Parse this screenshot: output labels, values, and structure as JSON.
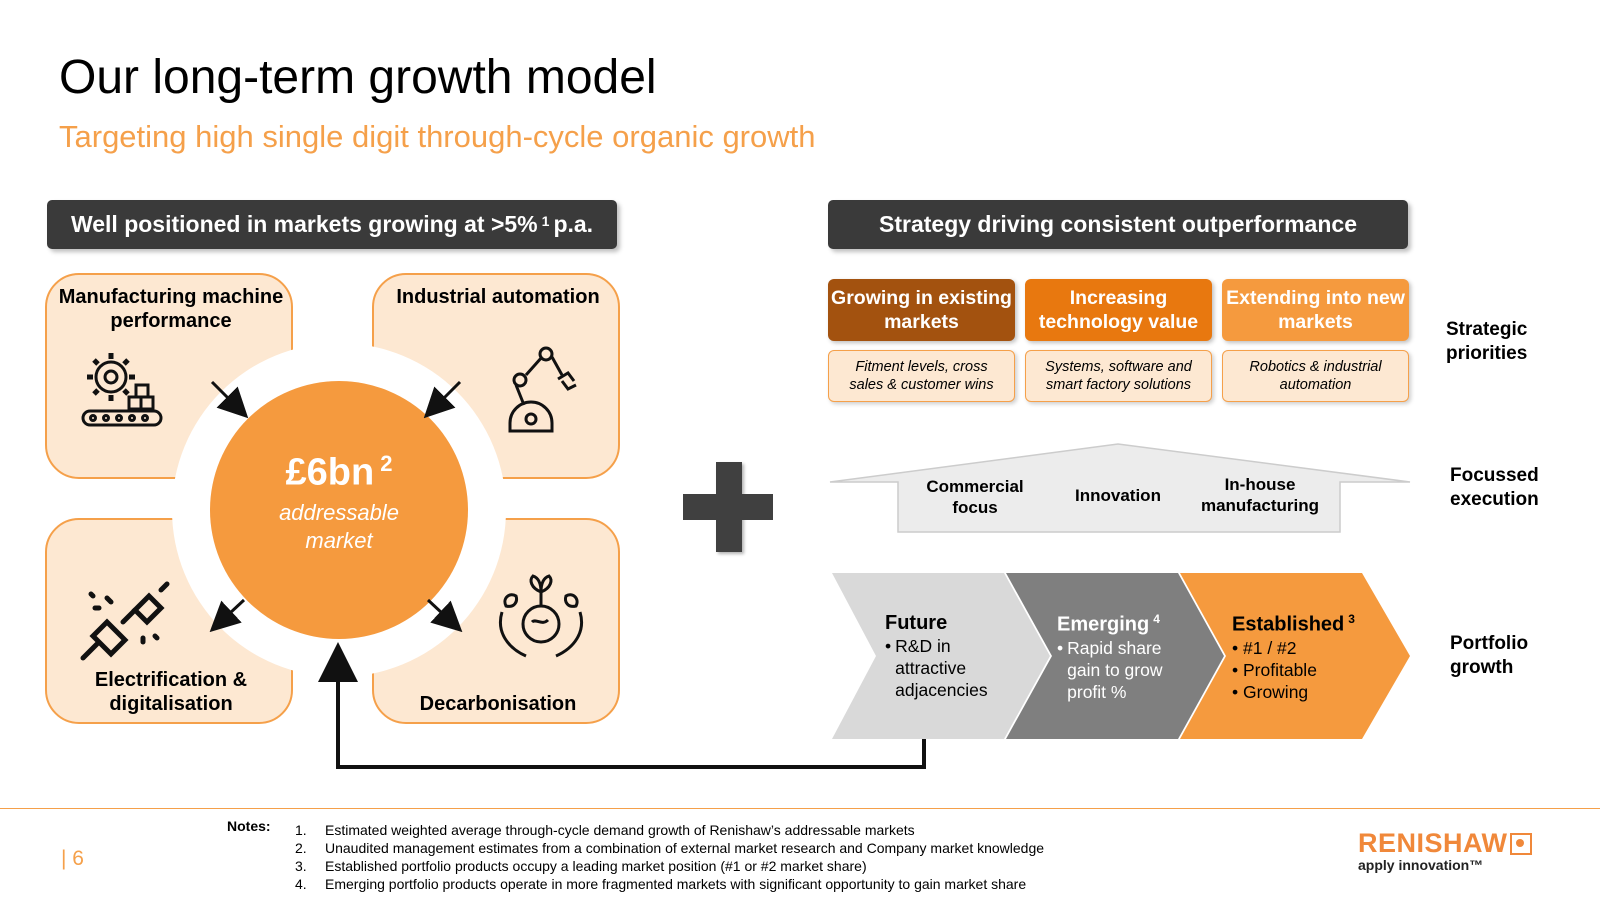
{
  "page": {
    "title": "Our long-term growth model",
    "subtitle": "Targeting high single digit through-cycle organic growth",
    "page_number": "| 6"
  },
  "left": {
    "header_text": "Well positioned in markets growing at >5%",
    "header_sup": "1",
    "header_suffix": "p.a.",
    "tiles": [
      {
        "label": "Manufacturing machine performance",
        "icon": "gear-conveyor-icon"
      },
      {
        "label": "Industrial automation",
        "icon": "robot-arm-icon"
      },
      {
        "label": "Electrification & digitalisation",
        "icon": "plug-icon"
      },
      {
        "label": "Decarbonisation",
        "icon": "hands-globe-plant-icon"
      }
    ],
    "circle": {
      "value": "£6bn",
      "sup": "2",
      "label_line1": "addressable",
      "label_line2": "market"
    }
  },
  "plus_icon": "plus-icon",
  "right": {
    "header_text": "Strategy driving consistent outperformance",
    "priorities": [
      {
        "title": "Growing in existing markets",
        "desc": "Fitment levels, cross sales & customer wins",
        "color": "#a3520f"
      },
      {
        "title": "Increasing technology value",
        "desc": "Systems, software and smart factory solutions",
        "color": "#e8780f"
      },
      {
        "title": "Extending into new markets",
        "desc": "Robotics & industrial automation",
        "color": "#f59a3e"
      }
    ],
    "side_labels": {
      "priorities": "Strategic priorities",
      "execution": "Focussed execution",
      "portfolio": "Portfolio growth"
    },
    "execution": [
      "Commercial focus",
      "Innovation",
      "In-house manufacturing"
    ],
    "portfolio": [
      {
        "title": "Future",
        "sup": "",
        "bullets": [
          "R&D in attractive adjacencies"
        ],
        "color": "#d9d9d9"
      },
      {
        "title": "Emerging",
        "sup": "4",
        "bullets": [
          "Rapid share gain to grow profit %"
        ],
        "color": "#7f7f7f"
      },
      {
        "title": "Established",
        "sup": "3",
        "bullets": [
          "#1 / #2",
          "Profitable",
          "Growing"
        ],
        "color": "#f59a3e"
      }
    ]
  },
  "notes": {
    "label": "Notes:",
    "items": [
      {
        "num": "1.",
        "text": "Estimated weighted average through-cycle demand growth of Renishaw’s addressable markets"
      },
      {
        "num": "2.",
        "text": "Unaudited management estimates from a combination of external market research and Company market knowledge"
      },
      {
        "num": "3.",
        "text": "Established portfolio products occupy a leading market position (#1 or #2 market share)"
      },
      {
        "num": "4.",
        "text": "Emerging portfolio products operate in more fragmented markets with significant opportunity to gain market share"
      }
    ]
  },
  "brand": {
    "name": "RENISHAW",
    "tagline": "apply innovation™",
    "color": "#f0883a"
  }
}
